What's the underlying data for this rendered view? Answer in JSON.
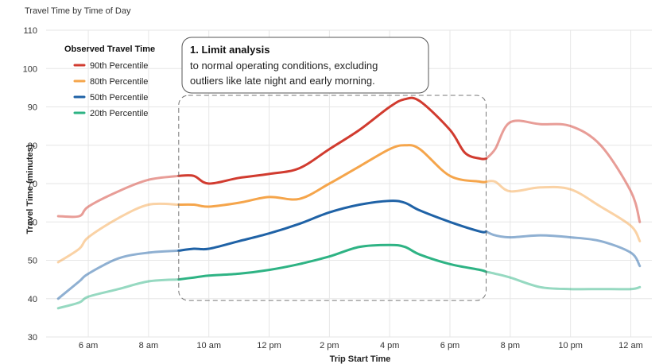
{
  "chart_data": {
    "type": "line",
    "title": "Travel Time by Time of Day",
    "xlabel": "Trip Start Time",
    "ylabel": "Travel Time (minutes)",
    "ylim": [
      30,
      110
    ],
    "y_ticks": [
      30,
      40,
      50,
      60,
      70,
      80,
      90,
      100,
      110
    ],
    "xlim": [
      4.6,
      24.7
    ],
    "x_ticks": [
      {
        "value": 6,
        "label": "6 am"
      },
      {
        "value": 8,
        "label": "8 am"
      },
      {
        "value": 10,
        "label": "10 am"
      },
      {
        "value": 12,
        "label": "12 pm"
      },
      {
        "value": 14,
        "label": "2 pm"
      },
      {
        "value": 16,
        "label": "4 pm"
      },
      {
        "value": 18,
        "label": "6 pm"
      },
      {
        "value": 20,
        "label": "8 pm"
      },
      {
        "value": 22,
        "label": "10 pm"
      },
      {
        "value": 24,
        "label": "12 am"
      }
    ],
    "grid": true,
    "legend": {
      "title": "Observed Travel Time",
      "placement": "top-left"
    },
    "highlight_range": [
      9,
      19.2
    ],
    "series": [
      {
        "name": "90th Percentile",
        "color": "#d13b2f",
        "x": [
          5,
          5.7,
          6,
          7,
          8,
          9,
          9.5,
          10,
          11,
          12,
          13,
          14,
          15,
          16,
          16.5,
          17,
          18,
          18.5,
          19,
          19.2,
          19.5,
          20,
          21,
          22,
          23,
          24,
          24.3
        ],
        "y": [
          61.5,
          61.5,
          64,
          68,
          71,
          72,
          72,
          70,
          71.5,
          72.5,
          74,
          79,
          84,
          90,
          92,
          91.5,
          84,
          78,
          76.5,
          76.5,
          79,
          86,
          85.5,
          85,
          80,
          68,
          60
        ]
      },
      {
        "name": "80th Percentile",
        "color": "#f5a54b",
        "x": [
          5,
          5.7,
          6,
          7,
          8,
          9,
          9.5,
          10,
          11,
          12,
          13,
          14,
          15,
          16,
          16.5,
          17,
          18,
          19,
          19.2,
          19.5,
          20,
          21,
          22,
          23,
          24,
          24.3
        ],
        "y": [
          49.5,
          53,
          56,
          61,
          64.5,
          64.5,
          64.5,
          64,
          65,
          66.5,
          66,
          70,
          74.5,
          79,
          80,
          79,
          72,
          70.5,
          70.5,
          70.5,
          68,
          69,
          68.5,
          64,
          59,
          55
        ]
      },
      {
        "name": "50th Percentile",
        "color": "#1f62a6",
        "x": [
          5,
          5.7,
          6,
          7,
          8,
          9,
          9.5,
          10,
          11,
          12,
          13,
          14,
          15,
          16,
          16.5,
          17,
          18,
          19,
          19.2,
          19.5,
          20,
          21,
          22,
          23,
          24,
          24.3
        ],
        "y": [
          40,
          44.5,
          46.5,
          50.5,
          52,
          52.5,
          53,
          53,
          55,
          57,
          59.5,
          62.5,
          64.5,
          65.5,
          65,
          63,
          60,
          57.5,
          57.5,
          56.5,
          56,
          56.5,
          56,
          55,
          52,
          48.5
        ]
      },
      {
        "name": "20th Percentile",
        "color": "#2eb384",
        "x": [
          5,
          5.7,
          6,
          7,
          8,
          9,
          9.5,
          10,
          11,
          12,
          13,
          14,
          15,
          16,
          16.5,
          17,
          18,
          19,
          19.2,
          19.5,
          20,
          21,
          22,
          23,
          24,
          24.3
        ],
        "y": [
          37.5,
          39,
          40.5,
          42.5,
          44.5,
          45,
          45.5,
          46,
          46.5,
          47.5,
          49,
          51,
          53.5,
          54,
          53.5,
          51.5,
          49,
          47.5,
          47,
          46.5,
          45.5,
          43,
          42.5,
          42.5,
          42.5,
          43
        ]
      }
    ],
    "annotation": {
      "title": "1. Limit analysis",
      "lines": [
        "to normal operating conditions, excluding",
        "outliers like late night and early morning."
      ]
    }
  },
  "colors": {
    "grid": "#e6e6e6",
    "faded_opacity": 0.5,
    "highlight_border": "#777777"
  }
}
